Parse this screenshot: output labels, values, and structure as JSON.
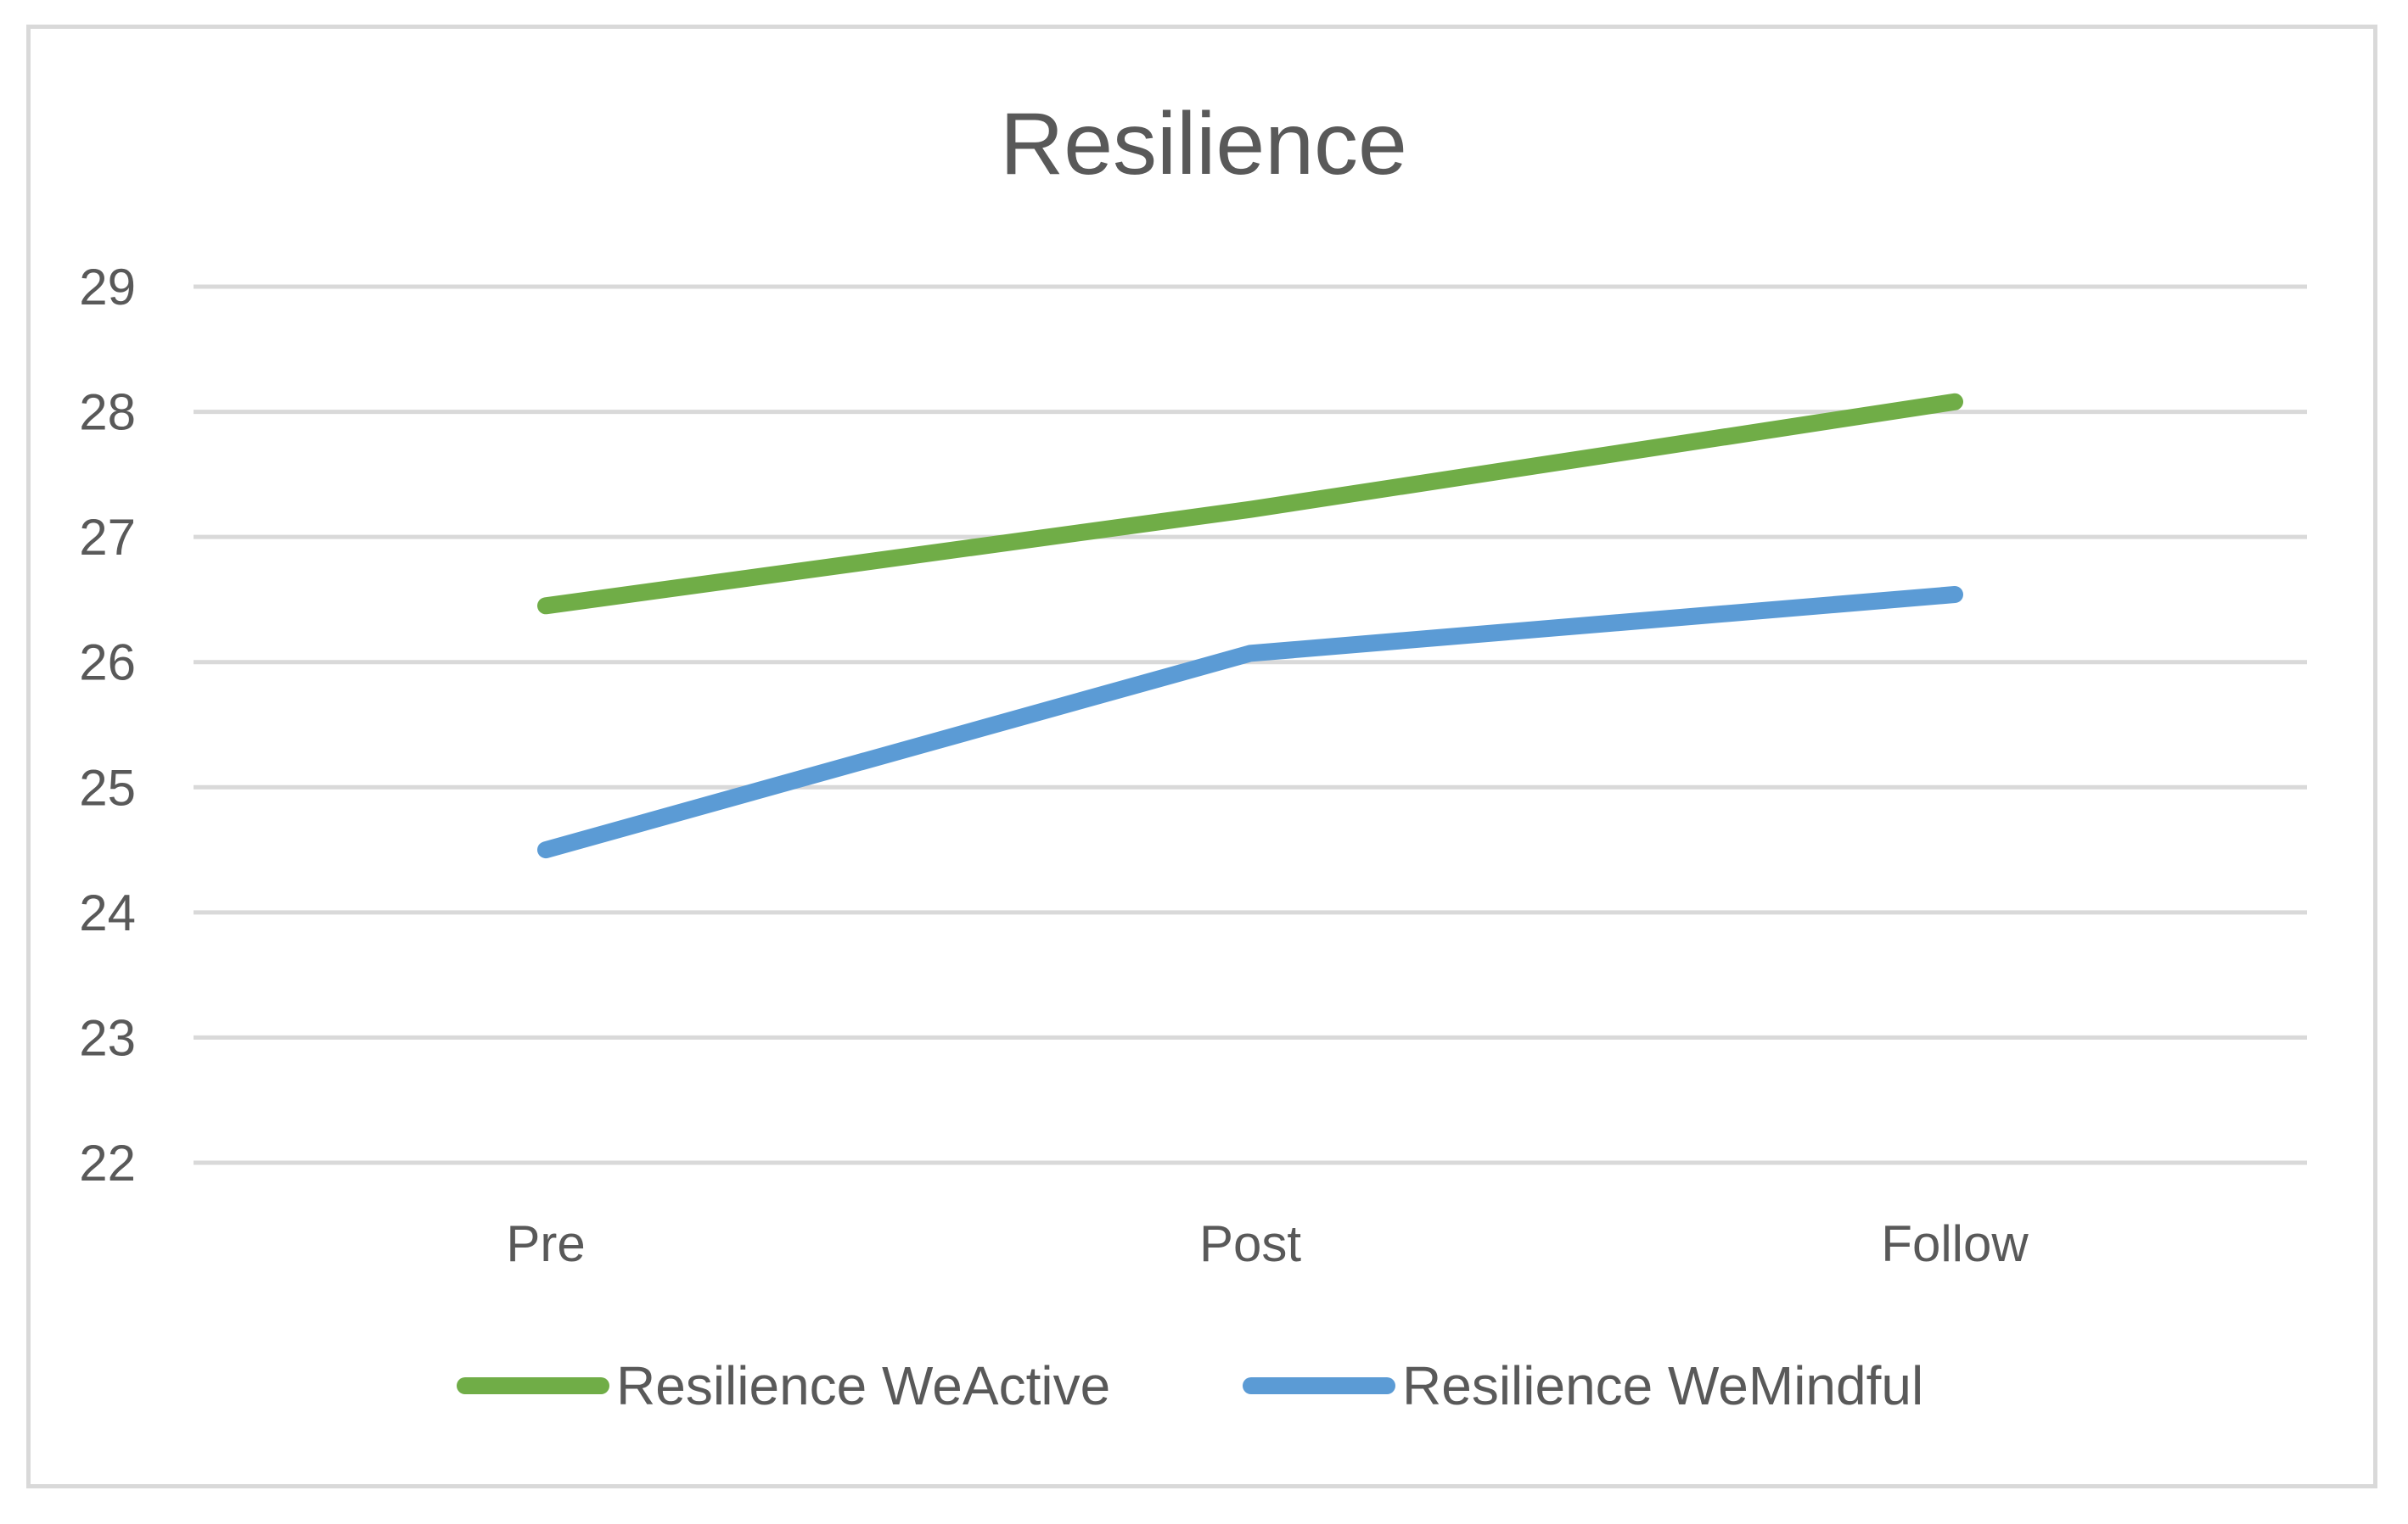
{
  "chart_data": {
    "type": "line",
    "title": "Resilience",
    "xlabel": "",
    "ylabel": "",
    "categories": [
      "Pre",
      "Post",
      "Follow"
    ],
    "ylim": [
      22,
      29
    ],
    "yticks": [
      22,
      23,
      24,
      25,
      26,
      27,
      28,
      29
    ],
    "grid": true,
    "legend_position": "bottom",
    "series": [
      {
        "name": "Resilience WeActive",
        "values": [
          26.45,
          27.22,
          28.08
        ],
        "color": "#70ad47"
      },
      {
        "name": "Resilience WeMindful",
        "values": [
          24.5,
          26.07,
          26.54
        ],
        "color": "#5b9bd5"
      }
    ]
  }
}
